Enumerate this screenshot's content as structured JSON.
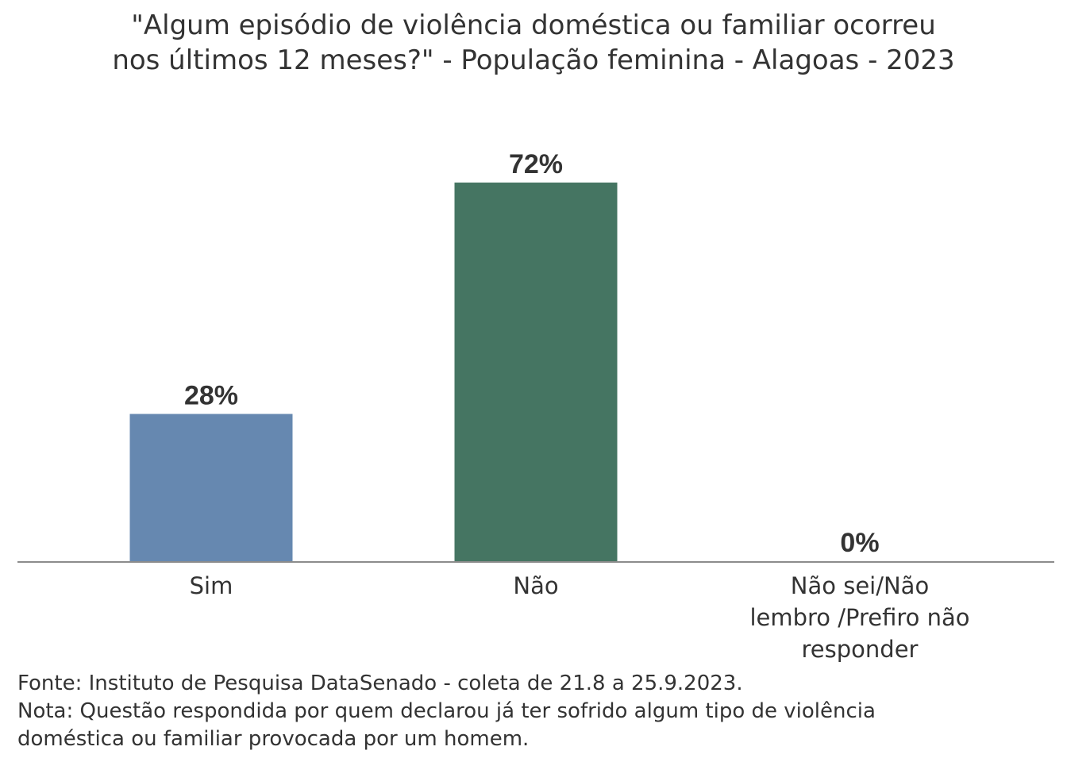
{
  "chart_data": {
    "type": "bar",
    "title_lines": [
      "\"Algum episódio de violência doméstica ou familiar ocorreu",
      "nos últimos 12 meses?\" - População feminina - Alagoas - 2023"
    ],
    "categories": [
      "Sim",
      "Não",
      "Não sei/Não lembro /Prefiro não responder"
    ],
    "category_label_lines": [
      [
        "Sim"
      ],
      [
        "Não"
      ],
      [
        "Não sei/Não",
        "lembro /Prefiro não",
        "responder"
      ]
    ],
    "values": [
      28,
      72,
      0
    ],
    "data_labels": [
      "28%",
      "72%",
      "0%"
    ],
    "colors": [
      "#6688b0",
      "#457562",
      "#6688b0"
    ],
    "ylim": [
      0,
      72
    ],
    "grid": false,
    "legend": "none",
    "footnotes": [
      "Fonte: Instituto de Pesquisa DataSenado - coleta de 21.8 a 25.9.2023.",
      "Nota: Questão respondida por quem declarou já ter sofrido algum tipo de violência",
      "doméstica ou familiar provocada por um homem."
    ]
  }
}
